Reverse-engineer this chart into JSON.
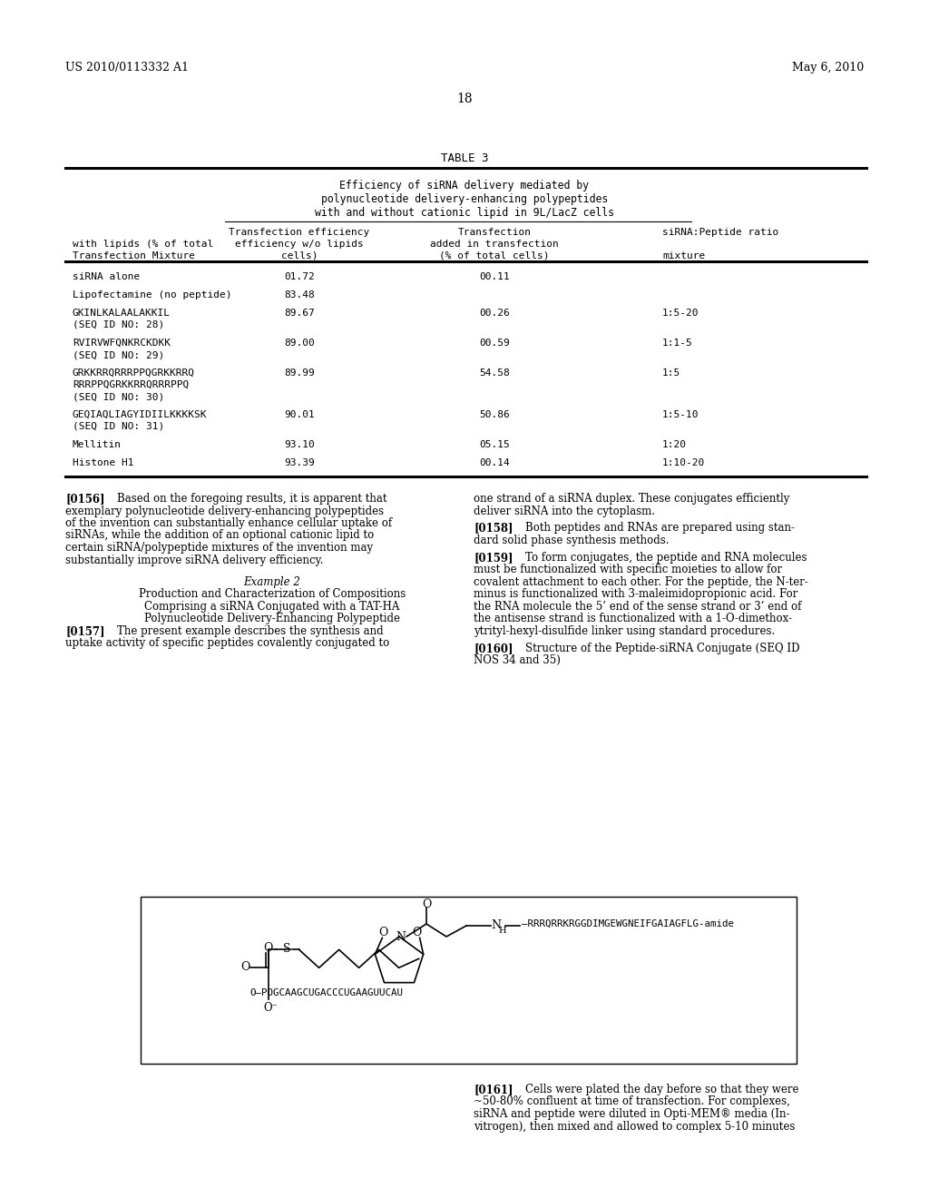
{
  "patent_number": "US 2010/0113332 A1",
  "date": "May 6, 2010",
  "page_number": "18",
  "table_title": "TABLE 3",
  "table_subtitle_lines": [
    "Efficiency of siRNA delivery mediated by",
    "polynucleotide delivery-enhancing polypeptides",
    "with and without cationic lipid in 9L/LacZ cells"
  ],
  "col_header_line1": [
    "",
    "Transfection efficiency",
    "Transfection",
    "siRNA:Peptide ratio"
  ],
  "col_header_line2": [
    "with lipids (% of total",
    "efficiency w/o lipids",
    "added in transfection",
    ""
  ],
  "col_header_line3": [
    "Transfection Mixture",
    "cells)",
    "(% of total cells)",
    "mixture"
  ],
  "rows": [
    [
      "siRNA alone",
      "01.72",
      "00.11",
      ""
    ],
    [
      "Lipofectamine (no peptide)",
      "83.48",
      "",
      ""
    ],
    [
      "GKINLKALAALAKKIL\n(SEQ ID NO: 28)",
      "89.67",
      "00.26",
      "1:5-20"
    ],
    [
      "RVIRVWFQNKRCKDKK\n(SEQ ID NO: 29)",
      "89.00",
      "00.59",
      "1:1-5"
    ],
    [
      "GRKKRRQRRRPPQGRKKRRQ\nRRRPPQGRKKRRQRRRPPQ\n(SEQ ID NO: 30)",
      "89.99",
      "54.58",
      "1:5"
    ],
    [
      "GEQIAQLIAGYIDIILKKKKSK\n(SEQ ID NO: 31)",
      "90.01",
      "50.86",
      "1:5-10"
    ],
    [
      "Mellitin",
      "93.10",
      "05.15",
      "1:20"
    ],
    [
      "Histone H1",
      "93.39",
      "00.14",
      "1:10-20"
    ]
  ],
  "left_col_paras": [
    {
      "tag": "[0156]",
      "indent": "    ",
      "lines": [
        "Based on the foregoing results, it is apparent that",
        "exemplary polynucleotide delivery-enhancing polypeptides",
        "of the invention can substantially enhance cellular uptake of",
        "siRNAs, while the addition of an optional cationic lipid to",
        "certain siRNA/polypeptide mixtures of the invention may",
        "substantially improve siRNA delivery efficiency."
      ]
    },
    {
      "tag": "",
      "indent": "",
      "lines": [
        ""
      ]
    },
    {
      "tag": "center",
      "indent": "",
      "lines": [
        "Example 2"
      ]
    },
    {
      "tag": "",
      "indent": "",
      "lines": [
        "Production and Characterization of Compositions",
        "Comprising a siRNA Conjugated with a TAT-HA",
        "Polynucleotide Delivery-Enhancing Polypeptide"
      ]
    },
    {
      "tag": "[0157]",
      "indent": "    ",
      "lines": [
        "The present example describes the synthesis and",
        "uptake activity of specific peptides covalently conjugated to"
      ]
    }
  ],
  "right_col_paras": [
    {
      "tag": "",
      "lines": [
        "one strand of a siRNA duplex. These conjugates efficiently",
        "deliver siRNA into the cytoplasm."
      ]
    },
    {
      "tag": "[0158]",
      "lines": [
        "Both peptides and RNAs are prepared using stan-",
        "dard solid phase synthesis methods."
      ]
    },
    {
      "tag": "[0159]",
      "lines": [
        "To form conjugates, the peptide and RNA molecules",
        "must be functionalized with specific moieties to allow for",
        "covalent attachment to each other. For the peptide, the N-ter-",
        "minus is functionalized with 3-maleimidopropionic acid. For",
        "the RNA molecule the 5’ end of the sense strand or 3’ end of",
        "the antisense strand is functionalized with a 1-O-dimethox-",
        "ytrityl-hexyl-disulfide linker using standard procedures."
      ]
    },
    {
      "tag": "[0160]",
      "lines": [
        "Structure of the Peptide-siRNA Conjugate (SEQ ID",
        "NOS 34 and 35)"
      ]
    }
  ],
  "para_0161_lines": [
    "[0161]    Cells were plated the day before so that they were",
    "~50-80% confluent at time of transfection. For complexes,",
    "siRNA and peptide were diluted in Opti-MEM® media (In-",
    "vitrogen), then mixed and allowed to complex 5-10 minutes"
  ],
  "background_color": "#ffffff"
}
